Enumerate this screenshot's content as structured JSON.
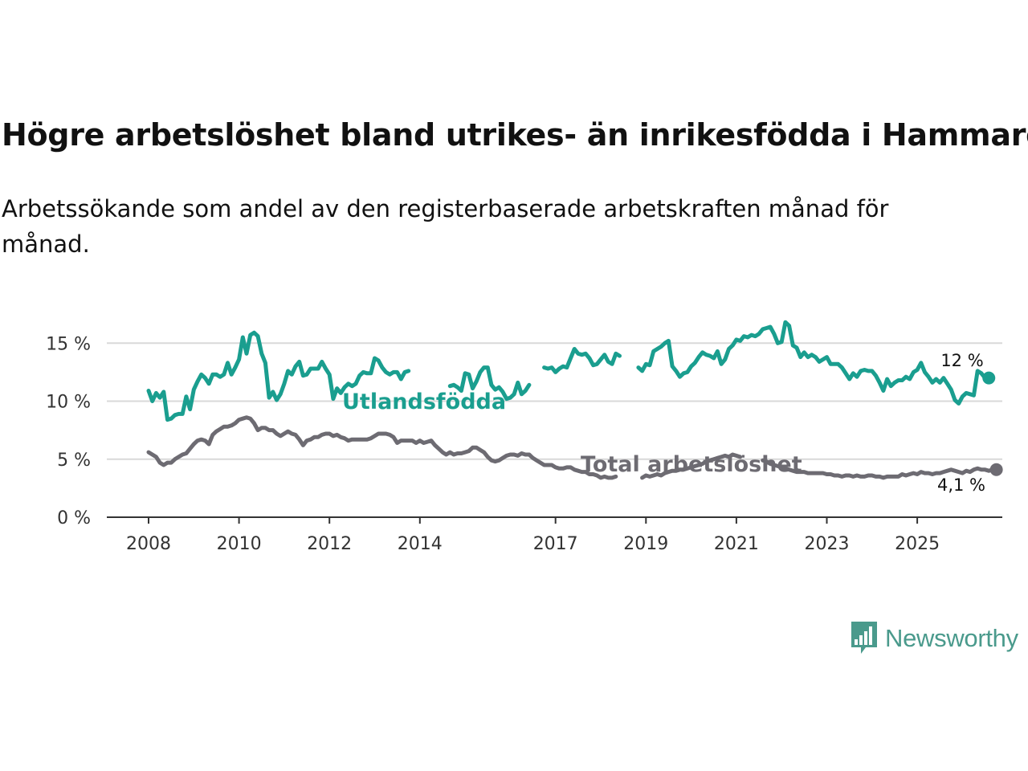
{
  "title": "Högre arbetslöshet bland utrikes- än inrikesfödda i Hammarö",
  "subtitle": "Arbetssökande som andel av den registerbaserade arbetskraften månad för månad.",
  "brand": {
    "name": "Newsworthy",
    "icon": "bar-chart-speech-bubble-icon"
  },
  "chart_data": {
    "type": "line",
    "x_start": "2008-01",
    "x_ticks": [
      "2008",
      "2010",
      "2012",
      "2014",
      "2017",
      "2019",
      "2021",
      "2023",
      "2025"
    ],
    "y_ticks": [
      "0 %",
      "5 %",
      "10 %",
      "15 %"
    ],
    "ylim": [
      0,
      17
    ],
    "grid": true,
    "series": [
      {
        "name": "Utlandsfödda",
        "color": "#1a9e8f",
        "end_label": "12 %",
        "values": [
          10.9,
          10.0,
          10.7,
          10.3,
          10.8,
          8.4,
          8.5,
          8.8,
          8.9,
          8.9,
          10.4,
          9.3,
          11.0,
          11.7,
          12.3,
          12.0,
          11.5,
          12.3,
          12.3,
          12.1,
          12.3,
          13.3,
          12.3,
          12.9,
          13.6,
          15.5,
          14.1,
          15.7,
          15.9,
          15.6,
          14.1,
          13.3,
          10.3,
          10.8,
          10.1,
          10.6,
          11.5,
          12.6,
          12.3,
          13.0,
          13.4,
          12.2,
          12.3,
          12.8,
          12.8,
          12.8,
          13.4,
          12.8,
          12.3,
          10.2,
          11.1,
          10.7,
          11.2,
          11.5,
          11.3,
          11.5,
          12.2,
          12.5,
          12.4,
          12.4,
          13.7,
          13.5,
          12.9,
          12.5,
          12.3,
          12.5,
          12.5,
          11.9,
          12.5,
          12.6,
          11.6,
          12.7,
          12.1,
          11.3,
          10.6,
          10.9,
          11.1,
          11.1,
          10.7,
          11.3,
          11.3,
          11.4,
          11.2,
          10.9,
          12.4,
          12.3,
          11.1,
          11.7,
          12.5,
          12.9,
          12.9,
          11.4,
          11.0,
          11.2,
          10.8,
          10.2,
          10.3,
          10.6,
          11.6,
          10.6,
          10.9,
          11.4,
          12.0,
          13.4,
          13.2,
          12.9,
          12.8,
          12.9,
          12.5,
          12.8,
          13.0,
          12.9,
          13.7,
          14.5,
          14.1,
          14.0,
          14.1,
          13.7,
          13.1,
          13.2,
          13.6,
          14.0,
          13.4,
          13.2,
          14.1,
          13.9,
          14.1,
          13.8,
          13.3,
          13.1,
          12.9,
          12.6,
          13.2,
          13.1,
          14.3,
          14.5,
          14.7,
          15.0,
          15.2,
          13.0,
          12.6,
          12.1,
          12.4,
          12.5,
          13.0,
          13.3,
          13.8,
          14.2,
          14.0,
          13.9,
          13.7,
          14.3,
          13.2,
          13.6,
          14.5,
          14.8,
          15.3,
          15.2,
          15.6,
          15.5,
          15.7,
          15.6,
          15.8,
          16.2,
          16.3,
          16.4,
          15.8,
          15.0,
          15.1,
          16.8,
          16.5,
          14.8,
          14.6,
          13.8,
          14.2,
          13.8,
          14.0,
          13.8,
          13.4,
          13.6,
          13.8,
          13.2,
          13.2,
          13.2,
          12.9,
          12.4,
          11.9,
          12.4,
          12.1,
          12.6,
          12.7,
          12.6,
          12.6,
          12.2,
          11.6,
          10.9,
          11.9,
          11.3,
          11.6,
          11.8,
          11.8,
          12.1,
          11.9,
          12.5,
          12.7,
          13.3,
          12.5,
          12.1,
          11.6,
          11.9,
          11.6,
          12.0,
          11.5,
          11.0,
          10.1,
          9.8,
          10.4,
          10.7,
          10.6,
          10.5,
          12.6,
          12.4,
          12.0,
          12.0
        ],
        "gaps": [
          [
            70,
            79
          ],
          [
            102,
            104
          ],
          [
            126,
            129
          ]
        ]
      },
      {
        "name": "Total arbetslöshet",
        "color": "#6d6b72",
        "end_label": "4,1 %",
        "values": [
          5.6,
          5.4,
          5.2,
          4.7,
          4.5,
          4.7,
          4.7,
          5.0,
          5.2,
          5.4,
          5.5,
          5.9,
          6.3,
          6.6,
          6.7,
          6.6,
          6.3,
          7.1,
          7.4,
          7.6,
          7.8,
          7.8,
          7.9,
          8.1,
          8.4,
          8.5,
          8.6,
          8.5,
          8.1,
          7.5,
          7.7,
          7.7,
          7.5,
          7.5,
          7.2,
          7.0,
          7.2,
          7.4,
          7.2,
          7.1,
          6.7,
          6.2,
          6.6,
          6.7,
          6.9,
          6.9,
          7.1,
          7.2,
          7.2,
          7.0,
          7.1,
          6.9,
          6.8,
          6.6,
          6.7,
          6.7,
          6.7,
          6.7,
          6.7,
          6.8,
          7.0,
          7.2,
          7.2,
          7.2,
          7.1,
          6.9,
          6.4,
          6.6,
          6.6,
          6.6,
          6.6,
          6.4,
          6.6,
          6.4,
          6.5,
          6.6,
          6.2,
          5.9,
          5.6,
          5.4,
          5.6,
          5.4,
          5.5,
          5.5,
          5.6,
          5.7,
          6.0,
          6.0,
          5.8,
          5.6,
          5.2,
          4.9,
          4.8,
          4.9,
          5.1,
          5.3,
          5.4,
          5.4,
          5.3,
          5.5,
          5.4,
          5.4,
          5.1,
          4.9,
          4.7,
          4.5,
          4.5,
          4.5,
          4.3,
          4.2,
          4.2,
          4.3,
          4.3,
          4.1,
          4.0,
          3.9,
          3.9,
          3.7,
          3.7,
          3.6,
          3.4,
          3.5,
          3.4,
          3.4,
          3.5,
          3.6,
          3.6,
          3.5,
          3.5,
          3.3,
          3.3,
          3.4,
          3.6,
          3.5,
          3.6,
          3.7,
          3.6,
          3.8,
          3.9,
          4.0,
          4.0,
          4.1,
          4.1,
          4.2,
          4.3,
          4.4,
          4.5,
          4.6,
          4.8,
          4.9,
          5.0,
          5.1,
          5.2,
          5.3,
          5.2,
          5.4,
          5.3,
          5.2,
          5.3,
          5.2,
          5.1,
          5.2,
          5.1,
          4.9,
          4.8,
          4.6,
          4.5,
          4.4,
          4.3,
          4.2,
          4.1,
          4.0,
          3.9,
          3.9,
          3.9,
          3.8,
          3.8,
          3.8,
          3.8,
          3.8,
          3.7,
          3.7,
          3.6,
          3.6,
          3.5,
          3.6,
          3.6,
          3.5,
          3.6,
          3.5,
          3.5,
          3.6,
          3.6,
          3.5,
          3.5,
          3.4,
          3.5,
          3.5,
          3.5,
          3.5,
          3.7,
          3.6,
          3.7,
          3.8,
          3.7,
          3.9,
          3.8,
          3.8,
          3.7,
          3.8,
          3.8,
          3.9,
          4.0,
          4.1,
          4.0,
          3.9,
          3.8,
          4.0,
          3.9,
          4.1,
          4.2,
          4.1,
          4.1,
          4.0,
          4.1,
          4.1
        ],
        "gaps": [
          [
            125,
            130
          ],
          [
            158,
            162
          ]
        ]
      }
    ]
  }
}
